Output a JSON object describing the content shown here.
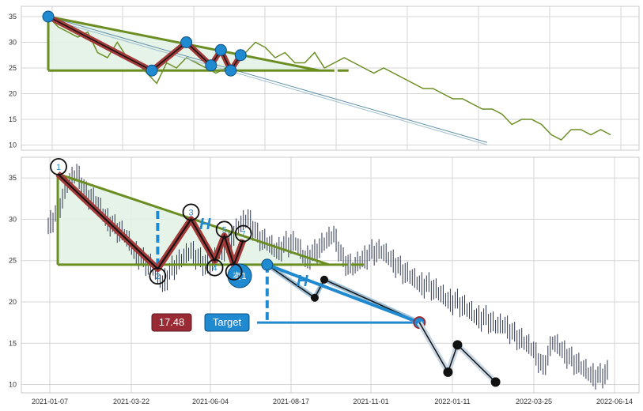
{
  "chart_data": [
    {
      "type": "line",
      "yticks": [
        10,
        15,
        20,
        25,
        30,
        35
      ],
      "ylim": [
        9,
        37
      ],
      "grid": true,
      "series": [
        {
          "values": [
            [
              0,
              35
            ],
            [
              2,
              33
            ],
            [
              4,
              32
            ],
            [
              6,
              31
            ],
            [
              8,
              32
            ],
            [
              10,
              28
            ],
            [
              12,
              27
            ],
            [
              14,
              30
            ],
            [
              16,
              27
            ],
            [
              18,
              26
            ],
            [
              20,
              24
            ],
            [
              22,
              22
            ],
            [
              24,
              26
            ],
            [
              26,
              25
            ],
            [
              28,
              27
            ],
            [
              30,
              26
            ],
            [
              32,
              25
            ],
            [
              34,
              24
            ],
            [
              36,
              25
            ],
            [
              38,
              26
            ],
            [
              40,
              28
            ],
            [
              42,
              30
            ],
            [
              44,
              29
            ],
            [
              46,
              27
            ],
            [
              48,
              28
            ],
            [
              50,
              26
            ],
            [
              52,
              26
            ],
            [
              54,
              28
            ],
            [
              56,
              25
            ],
            [
              58,
              26
            ],
            [
              60,
              27
            ],
            [
              62,
              26
            ],
            [
              64,
              25
            ],
            [
              66,
              24
            ],
            [
              68,
              25
            ],
            [
              70,
              24
            ],
            [
              72,
              23
            ],
            [
              74,
              22
            ],
            [
              76,
              21
            ],
            [
              78,
              21
            ],
            [
              80,
              20
            ],
            [
              82,
              19
            ],
            [
              84,
              19
            ],
            [
              86,
              18
            ],
            [
              88,
              17
            ],
            [
              90,
              17
            ],
            [
              92,
              16
            ],
            [
              94,
              14
            ],
            [
              96,
              15
            ],
            [
              98,
              15
            ],
            [
              100,
              14
            ],
            [
              102,
              12
            ],
            [
              104,
              11
            ],
            [
              106,
              13
            ],
            [
              108,
              13
            ],
            [
              110,
              12
            ],
            [
              112,
              13
            ],
            [
              114,
              12
            ]
          ],
          "color": "#6b8e23"
        }
      ],
      "patterns": {
        "zigzag": [
          [
            0,
            35
          ],
          [
            21,
            24.5
          ],
          [
            28,
            30
          ],
          [
            33,
            25.5
          ],
          [
            35,
            28.5
          ],
          [
            37,
            24.5
          ],
          [
            39,
            27.5
          ]
        ],
        "upper_line": [
          [
            0,
            35
          ],
          [
            55,
            24.5
          ]
        ],
        "lower_line": [
          [
            0,
            24.5
          ],
          [
            58,
            24.5
          ]
        ],
        "projection": [
          [
            0,
            35
          ],
          [
            89,
            10.5
          ]
        ]
      }
    },
    {
      "type": "line",
      "xticks": [
        "2021-01-07",
        "2021-03-22",
        "2021-06-04",
        "2021-08-17",
        "2021-11-01",
        "2022-01-11",
        "2022-03-25",
        "2022-06-14"
      ],
      "yticks": [
        10,
        15,
        20,
        25,
        30,
        35
      ],
      "ylim": [
        9,
        37.5
      ],
      "grid": true,
      "series": [
        {
          "values": [
            [
              0,
              29
            ],
            [
              2,
              31
            ],
            [
              4,
              34
            ],
            [
              6,
              35.5
            ],
            [
              8,
              33
            ],
            [
              10,
              32
            ],
            [
              12,
              30
            ],
            [
              14,
              29
            ],
            [
              16,
              28
            ],
            [
              18,
              26
            ],
            [
              20,
              25
            ],
            [
              22,
              24
            ],
            [
              24,
              22
            ],
            [
              26,
              24
            ],
            [
              28,
              25
            ],
            [
              30,
              26
            ],
            [
              32,
              25
            ],
            [
              34,
              24
            ],
            [
              36,
              26
            ],
            [
              38,
              27
            ],
            [
              40,
              29
            ],
            [
              42,
              30
            ],
            [
              44,
              28
            ],
            [
              46,
              27
            ],
            [
              48,
              26
            ],
            [
              50,
              27
            ],
            [
              52,
              27
            ],
            [
              54,
              25
            ],
            [
              56,
              26
            ],
            [
              58,
              27
            ],
            [
              60,
              28
            ],
            [
              62,
              25
            ],
            [
              64,
              24
            ],
            [
              66,
              25
            ],
            [
              68,
              26
            ],
            [
              70,
              26
            ],
            [
              72,
              25
            ],
            [
              74,
              24
            ],
            [
              76,
              23
            ],
            [
              78,
              22
            ],
            [
              80,
              22
            ],
            [
              82,
              21
            ],
            [
              84,
              20
            ],
            [
              86,
              20
            ],
            [
              88,
              19
            ],
            [
              90,
              18
            ],
            [
              92,
              18
            ],
            [
              94,
              17
            ],
            [
              96,
              17
            ],
            [
              98,
              16
            ],
            [
              100,
              15
            ],
            [
              102,
              14
            ],
            [
              104,
              12
            ],
            [
              106,
              15
            ],
            [
              108,
              14
            ],
            [
              110,
              13
            ],
            [
              112,
              12
            ],
            [
              114,
              11
            ],
            [
              116,
              11
            ],
            [
              118,
              11.5
            ]
          ],
          "color": "#2c3550"
        }
      ],
      "patterns": {
        "zigzag": [
          [
            2,
            35.5
          ],
          [
            23,
            24
          ],
          [
            30,
            30
          ],
          [
            35,
            25
          ],
          [
            37,
            28
          ],
          [
            39,
            24.5
          ],
          [
            41,
            27.5
          ]
        ],
        "upper_line": [
          [
            2,
            35.5
          ],
          [
            59,
            24.5
          ]
        ],
        "lower_line": [
          [
            2,
            24.5
          ],
          [
            63,
            24.5
          ]
        ],
        "after_points": [
          [
            46,
            24.5
          ],
          [
            56,
            20.5
          ],
          [
            58,
            22.7
          ],
          [
            78,
            17.5
          ]
        ],
        "drop_points": [
          [
            84,
            11.5
          ],
          [
            86,
            14.8
          ],
          [
            94,
            10.3
          ]
        ],
        "target_value": 17.5,
        "h_marker_x": [
          23,
          46
        ]
      },
      "point_labels": [
        "1",
        "2",
        "3",
        "4",
        "5",
        "6",
        "7"
      ],
      "h_labels": [
        "H",
        "H"
      ],
      "sell_label": "卖1",
      "price_badge": "17.48",
      "target_badge": "Target"
    }
  ],
  "colors": {
    "top_line": "#6b8e23",
    "bottom_line": "#2c3550",
    "triangle": "#6b8e23",
    "triangle_fill": "#e3f2e6",
    "zigzag": "#a33a3a",
    "blue": "#1f8ad0",
    "dark_red": "#9a2a34",
    "black": "#111111"
  }
}
